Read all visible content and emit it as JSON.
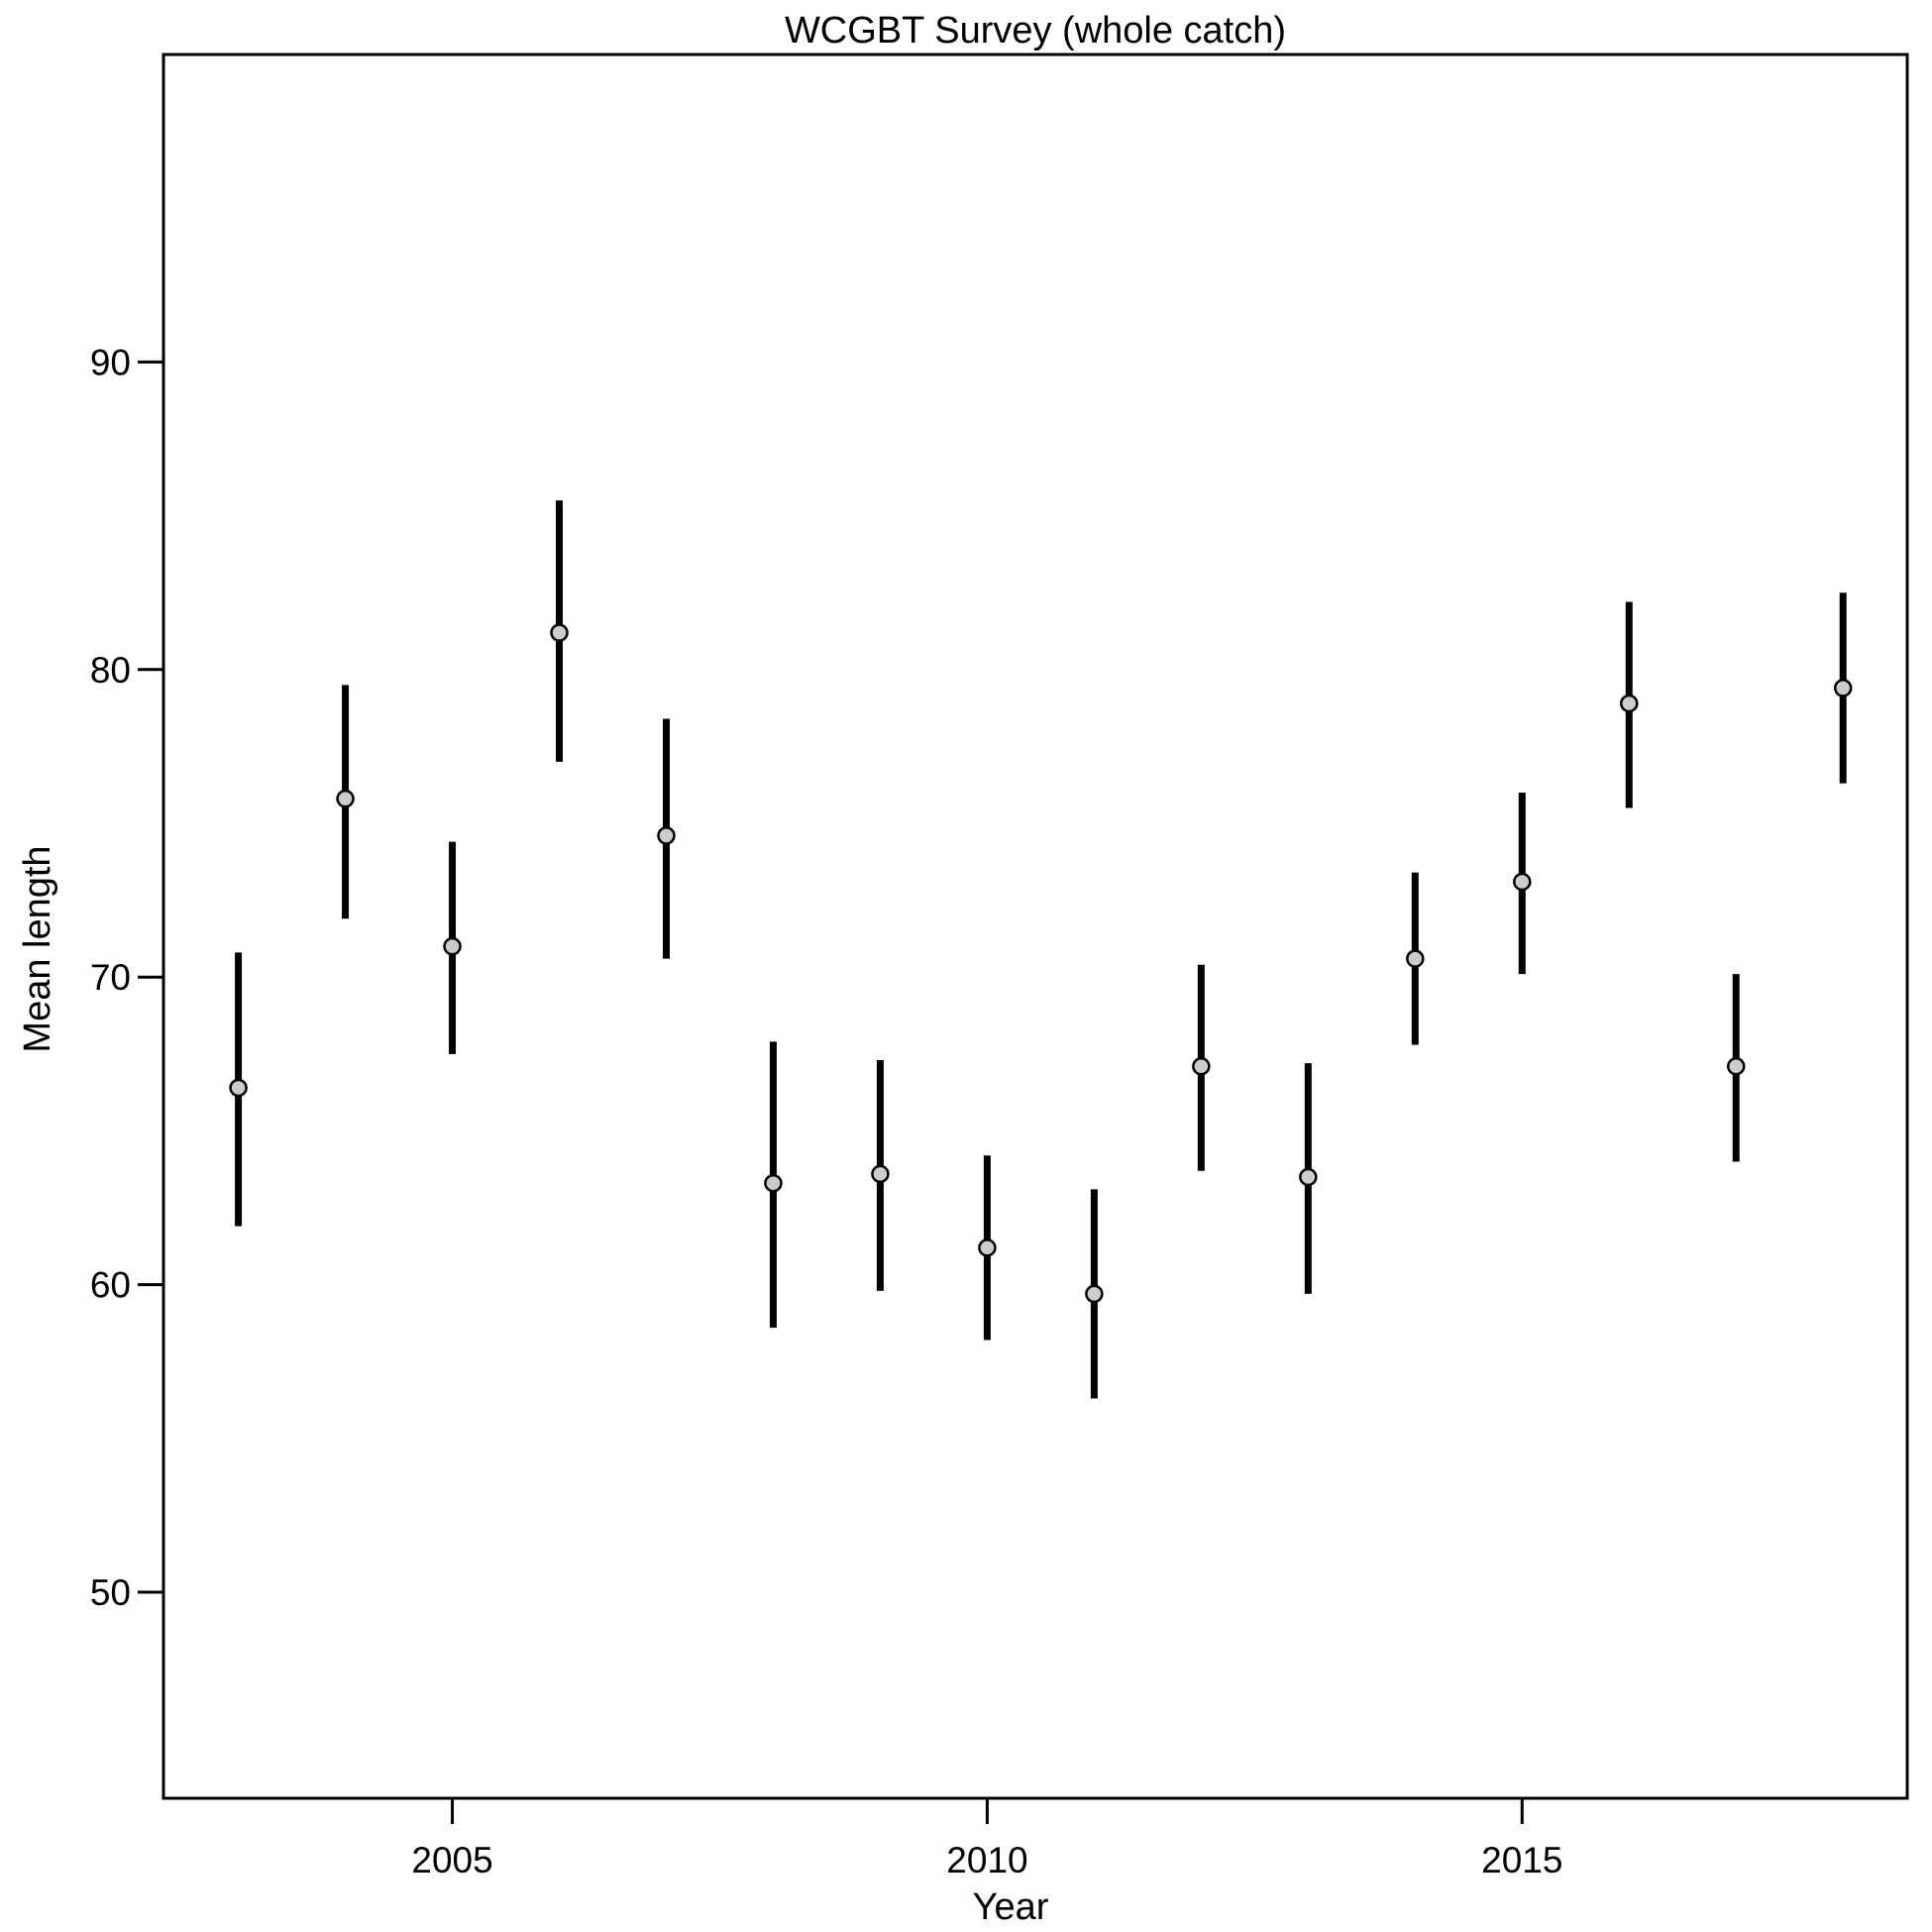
{
  "chart_data": {
    "type": "scatter",
    "title": "WCGBT Survey (whole catch)",
    "xlabel": "Year",
    "ylabel": "Mean length",
    "xlim": [
      2002.3,
      2018.6
    ],
    "ylim": [
      43.3,
      100
    ],
    "x_ticks": [
      2005,
      2010,
      2015
    ],
    "y_ticks": [
      50,
      60,
      70,
      80,
      90
    ],
    "grid": false,
    "legend": "none",
    "colors": {
      "interval": "#000000",
      "point_fill": "#cccccc",
      "point_stroke": "#000000",
      "frame": "#000000"
    },
    "series": [
      {
        "x": [
          2003,
          2004,
          2005,
          2006,
          2007,
          2008,
          2009,
          2010,
          2011,
          2012,
          2013,
          2014,
          2015,
          2016,
          2017,
          2018
        ],
        "y": [
          66.4,
          75.8,
          71.0,
          81.2,
          74.6,
          63.3,
          63.6,
          61.2,
          59.7,
          67.1,
          63.5,
          70.6,
          73.1,
          78.9,
          67.1,
          79.4
        ],
        "lower": [
          61.9,
          71.9,
          67.5,
          77.0,
          70.6,
          58.6,
          59.8,
          58.2,
          56.3,
          63.7,
          59.7,
          67.8,
          70.1,
          75.5,
          64.0,
          76.3
        ],
        "upper": [
          70.8,
          79.5,
          74.4,
          85.5,
          78.4,
          67.9,
          67.3,
          64.2,
          63.1,
          70.4,
          67.2,
          73.4,
          76.0,
          82.2,
          70.1,
          82.5
        ]
      }
    ]
  }
}
